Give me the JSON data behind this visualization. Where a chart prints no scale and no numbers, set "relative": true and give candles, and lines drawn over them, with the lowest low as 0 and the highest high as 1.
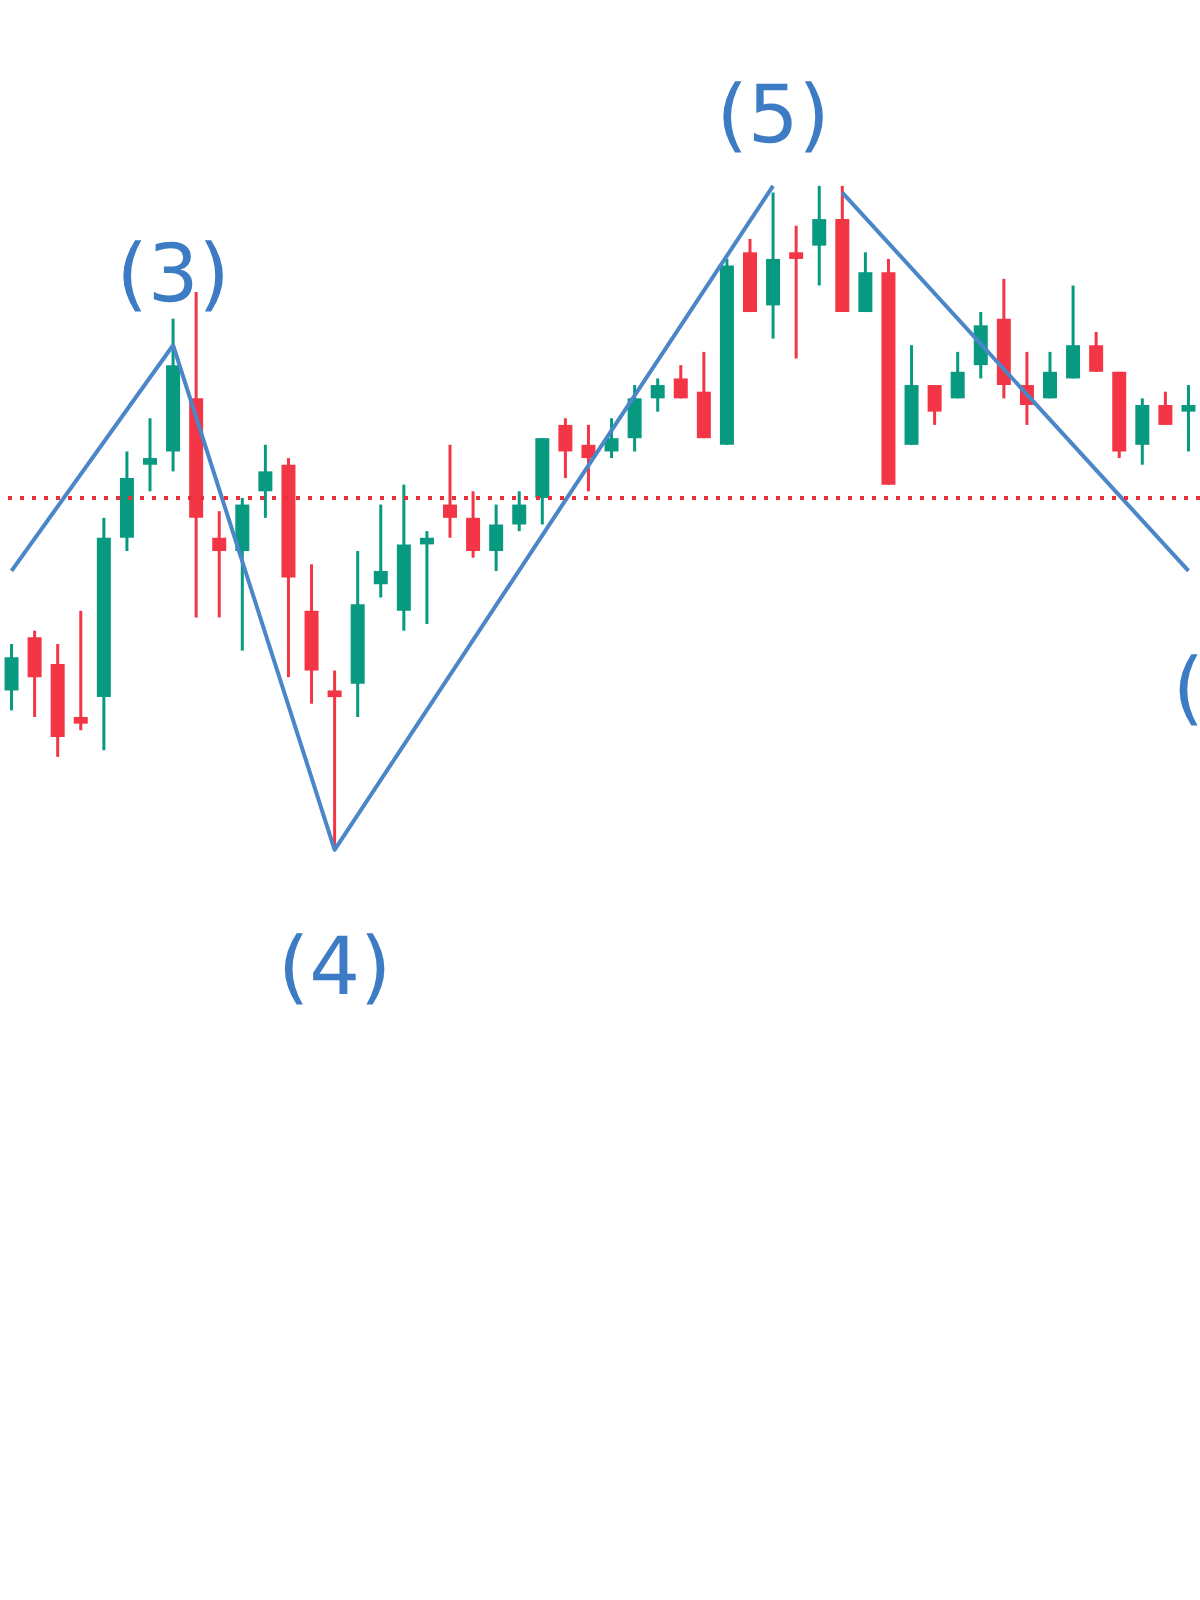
{
  "chart_data": {
    "type": "candlestick",
    "relative": true,
    "categories": [
      null,
      null,
      null,
      null,
      null,
      null,
      null,
      null,
      null,
      null,
      null,
      null,
      null,
      null,
      null,
      null,
      null,
      null,
      null,
      null,
      null,
      null,
      null,
      null,
      null,
      null,
      null,
      null,
      null,
      null,
      null,
      null,
      null,
      null,
      null,
      null,
      null,
      null,
      null,
      null,
      null,
      null,
      null,
      null,
      null,
      null,
      null,
      null,
      null,
      null,
      null,
      null
    ],
    "ohlc": [
      [
        0.24,
        0.31,
        0.21,
        0.29
      ],
      [
        0.32,
        0.33,
        0.2,
        0.26
      ],
      [
        0.28,
        0.31,
        0.14,
        0.17
      ],
      [
        0.2,
        0.36,
        0.18,
        0.19
      ],
      [
        0.23,
        0.5,
        0.15,
        0.47
      ],
      [
        0.47,
        0.6,
        0.45,
        0.56
      ],
      [
        0.58,
        0.65,
        0.54,
        0.59
      ],
      [
        0.6,
        0.8,
        0.57,
        0.73
      ],
      [
        0.68,
        0.84,
        0.35,
        0.5
      ],
      [
        0.47,
        0.51,
        0.35,
        0.45
      ],
      [
        0.45,
        0.53,
        0.3,
        0.52
      ],
      [
        0.54,
        0.61,
        0.5,
        0.57
      ],
      [
        0.58,
        0.59,
        0.26,
        0.41
      ],
      [
        0.36,
        0.43,
        0.22,
        0.27
      ],
      [
        0.24,
        0.27,
        0,
        0.23
      ],
      [
        0.25,
        0.45,
        0.2,
        0.37
      ],
      [
        0.4,
        0.52,
        0.38,
        0.42
      ],
      [
        0.36,
        0.55,
        0.33,
        0.46
      ],
      [
        0.46,
        0.48,
        0.34,
        0.47
      ],
      [
        0.52,
        0.61,
        0.47,
        0.5
      ],
      [
        0.5,
        0.54,
        0.44,
        0.45
      ],
      [
        0.45,
        0.52,
        0.42,
        0.49
      ],
      [
        0.49,
        0.54,
        0.48,
        0.52
      ],
      [
        0.53,
        0.62,
        0.49,
        0.62
      ],
      [
        0.64,
        0.65,
        0.56,
        0.6
      ],
      [
        0.61,
        0.64,
        0.54,
        0.59
      ],
      [
        0.6,
        0.65,
        0.59,
        0.62
      ],
      [
        0.62,
        0.7,
        0.6,
        0.68
      ],
      [
        0.68,
        0.71,
        0.66,
        0.7
      ],
      [
        0.71,
        0.73,
        0.68,
        0.68
      ],
      [
        0.69,
        0.75,
        0.62,
        0.62
      ],
      [
        0.61,
        0.89,
        0.61,
        0.88
      ],
      [
        0.9,
        0.92,
        0.81,
        0.81
      ],
      [
        0.82,
        0.99,
        0.77,
        0.89
      ],
      [
        0.9,
        0.94,
        0.74,
        0.89
      ],
      [
        0.91,
        1,
        0.85,
        0.95
      ],
      [
        0.95,
        1,
        0.81,
        0.81
      ],
      [
        0.81,
        0.9,
        0.81,
        0.87
      ],
      [
        0.87,
        0.89,
        0.55,
        0.55
      ],
      [
        0.61,
        0.76,
        0.61,
        0.7
      ],
      [
        0.7,
        0.7,
        0.64,
        0.66
      ],
      [
        0.68,
        0.75,
        0.68,
        0.72
      ],
      [
        0.73,
        0.81,
        0.71,
        0.79
      ],
      [
        0.8,
        0.86,
        0.68,
        0.7
      ],
      [
        0.7,
        0.75,
        0.64,
        0.67
      ],
      [
        0.68,
        0.75,
        0.68,
        0.72
      ],
      [
        0.71,
        0.85,
        0.71,
        0.76
      ],
      [
        0.76,
        0.78,
        0.72,
        0.72
      ],
      [
        0.72,
        0.72,
        0.59,
        0.6
      ],
      [
        0.61,
        0.68,
        0.58,
        0.67
      ],
      [
        0.67,
        0.69,
        0.64,
        0.64
      ],
      [
        0.66,
        0.7,
        0.6,
        0.67
      ]
    ],
    "colors": [
      "#089981",
      "#f23645",
      "#f23645",
      "#f23645",
      "#089981",
      "#089981",
      "#089981",
      "#089981",
      "#f23645",
      "#f23645",
      "#089981",
      "#089981",
      "#f23645",
      "#f23645",
      "#f23645",
      "#089981",
      "#089981",
      "#089981",
      "#089981",
      "#f23645",
      "#f23645",
      "#089981",
      "#089981",
      "#089981",
      "#f23645",
      "#f23645",
      "#089981",
      "#089981",
      "#089981",
      "#f23645",
      "#f23645",
      "#089981",
      "#f23645",
      "#089981",
      "#f23645",
      "#089981",
      "#f23645",
      "#089981",
      "#f23645",
      "#089981",
      "#f23645",
      "#089981",
      "#089981",
      "#f23645",
      "#f23645",
      "#089981",
      "#089981",
      "#f23645",
      "#f23645",
      "#089981",
      "#f23645",
      "#089981"
    ],
    "series": [
      {
        "type": "line",
        "color": "#4a86c8",
        "values": [
          0.42,
          null,
          null,
          null,
          null,
          null,
          null,
          0.76,
          null,
          null,
          null,
          null,
          null,
          null,
          0,
          null,
          null,
          null,
          null,
          null,
          null,
          null,
          null,
          null,
          null,
          null,
          null,
          null,
          null,
          null,
          null,
          null,
          null,
          1,
          null,
          null,
          null,
          null,
          null,
          null,
          null,
          null,
          null,
          null,
          null,
          null,
          null,
          null,
          null,
          null,
          null,
          null
        ]
      },
      {
        "type": "line",
        "color": "#4a86c8",
        "values": [
          null,
          null,
          null,
          null,
          null,
          null,
          null,
          null,
          null,
          null,
          null,
          null,
          null,
          null,
          null,
          null,
          null,
          null,
          null,
          null,
          null,
          null,
          null,
          null,
          null,
          null,
          null,
          null,
          null,
          null,
          null,
          null,
          null,
          null,
          null,
          null,
          0.99,
          null,
          null,
          null,
          null,
          null,
          null,
          null,
          null,
          null,
          null,
          null,
          null,
          null,
          null,
          0.42
        ]
      }
    ],
    "ref_lines": [
      {
        "axis": "y",
        "value": 0.53,
        "color": "#e8303a",
        "line_style": "dotted"
      }
    ],
    "annotations": [
      "(3)",
      "(4)",
      "(5)",
      "("
    ]
  }
}
